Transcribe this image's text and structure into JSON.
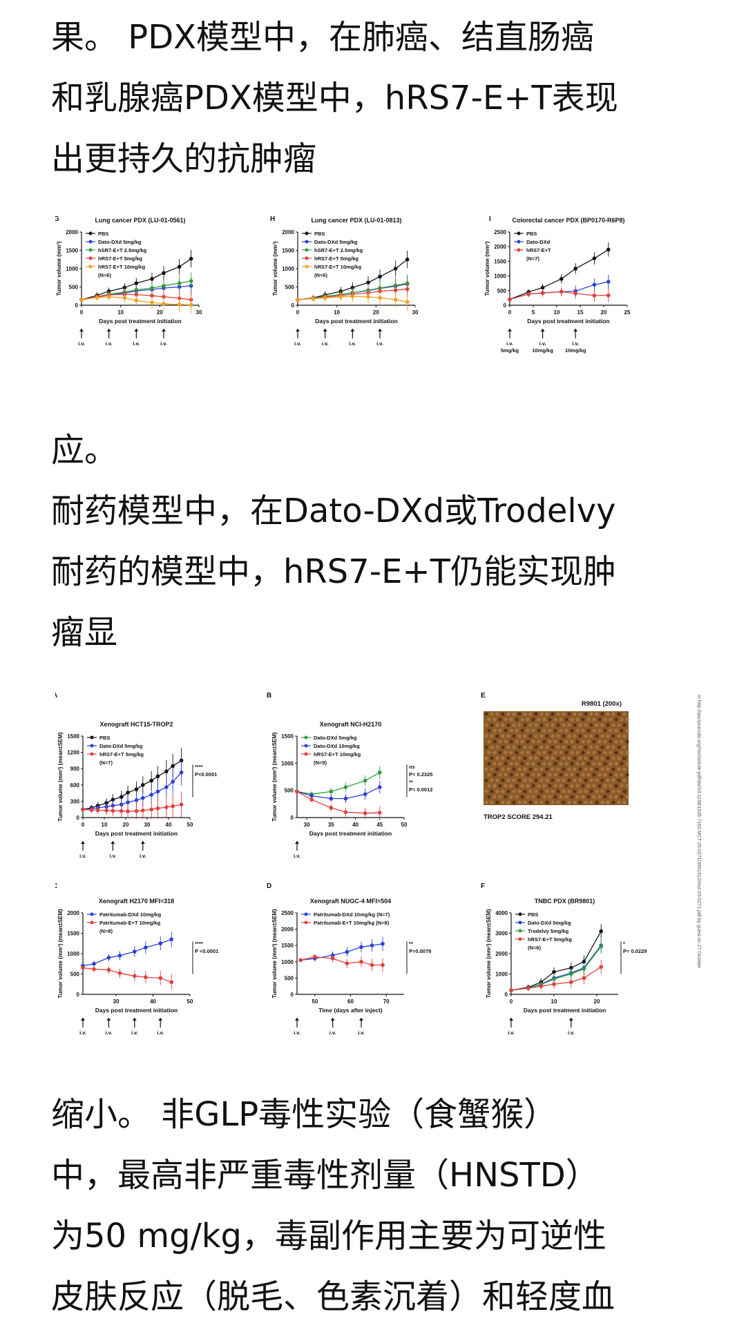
{
  "paragraphs": {
    "p1": [
      "果。 PDX模型中，在肺癌、结直肠癌",
      "和乳腺癌PDX模型中，hRS7-E+T表现",
      "出更持久的抗肿瘤"
    ],
    "p2": [
      "应。",
      " 耐药模型中，在Dato-DXd或Trodelvy",
      "耐药的模型中，hRS7-E+T仍能实现肿",
      "瘤显"
    ],
    "p3": [
      "缩小。 非GLP毒性实验（食蟹猴）",
      "中，最高非严重毒性剂量（HNSTD）",
      "为50 mg/kg，毒副作用主要为可逆性",
      "皮肤反应（脱毛、色素沉着）和轻度血"
    ]
  },
  "colors": {
    "black": "#111111",
    "blue": "#2b3fd6",
    "green": "#2e9e3a",
    "red": "#e0403c",
    "orange": "#f0a020",
    "tissue": "#8a5a2a"
  },
  "chart_data": [
    {
      "panel": "G",
      "type": "line",
      "title": "Lung cancer PDX (LU-01-0561)",
      "xlabel": "Days post treatment initiation",
      "ylabel": "Tumor volume (mm³)",
      "xlim": [
        0,
        30
      ],
      "ylim": [
        0,
        2000
      ],
      "xticks": [
        0,
        10,
        20,
        30
      ],
      "yticks": [
        0,
        500,
        1000,
        1500,
        2000
      ],
      "note": "(N=6)",
      "dosing": [
        "i.v.",
        "i.v.",
        "i.v.",
        "i.v."
      ],
      "dose_days": [
        0,
        7,
        14,
        21
      ],
      "series": [
        {
          "name": "PBS",
          "color": "#111111",
          "x": [
            0,
            4,
            7,
            11,
            14,
            18,
            21,
            25,
            28
          ],
          "y": [
            150,
            270,
            380,
            480,
            600,
            720,
            880,
            1050,
            1270
          ]
        },
        {
          "name": "Dato-DXd 5mg/kg",
          "color": "#2b3fd6",
          "x": [
            0,
            4,
            7,
            11,
            14,
            18,
            21,
            25,
            28
          ],
          "y": [
            150,
            220,
            280,
            330,
            390,
            430,
            470,
            500,
            530
          ]
        },
        {
          "name": "hSR7-E+T 2.5mg/kg",
          "color": "#2e9e3a",
          "x": [
            0,
            4,
            7,
            11,
            14,
            18,
            21,
            25,
            28
          ],
          "y": [
            150,
            230,
            300,
            360,
            420,
            470,
            530,
            600,
            660
          ]
        },
        {
          "name": "hRS7-E+T 5mg/kg",
          "color": "#e0403c",
          "x": [
            0,
            4,
            7,
            11,
            14,
            18,
            21,
            25,
            28
          ],
          "y": [
            150,
            230,
            280,
            300,
            290,
            260,
            230,
            190,
            150
          ]
        },
        {
          "name": "hRS7-E+T 10mg/kg",
          "color": "#f0a020",
          "x": [
            0,
            4,
            7,
            11,
            14,
            18,
            21,
            25,
            28
          ],
          "y": [
            150,
            210,
            230,
            200,
            130,
            70,
            40,
            20,
            10
          ]
        }
      ]
    },
    {
      "panel": "H",
      "type": "line",
      "title": "Lung cancer PDX (LU-01-0813)",
      "xlabel": "Days post treatment initiation",
      "ylabel": "Tumor volume (mm³)",
      "xlim": [
        0,
        30
      ],
      "ylim": [
        0,
        2000
      ],
      "xticks": [
        0,
        10,
        20,
        30
      ],
      "yticks": [
        0,
        500,
        1000,
        1500,
        2000
      ],
      "note": "(N=6)",
      "dosing": [
        "i.v.",
        "i.v.",
        "i.v.",
        "i.v."
      ],
      "dose_days": [
        0,
        7,
        14,
        21
      ],
      "series": [
        {
          "name": "PBS",
          "color": "#111111",
          "x": [
            0,
            4,
            7,
            11,
            14,
            18,
            21,
            25,
            28
          ],
          "y": [
            150,
            200,
            280,
            380,
            480,
            620,
            780,
            1000,
            1250
          ]
        },
        {
          "name": "Dato-DXd 5mg/kg",
          "color": "#2b3fd6",
          "x": [
            0,
            4,
            7,
            11,
            14,
            18,
            21,
            25,
            28
          ],
          "y": [
            150,
            190,
            240,
            290,
            340,
            400,
            460,
            520,
            580
          ]
        },
        {
          "name": "hSR7-E+T 2.5mg/kg",
          "color": "#2e9e3a",
          "x": [
            0,
            4,
            7,
            11,
            14,
            18,
            21,
            25,
            28
          ],
          "y": [
            150,
            190,
            240,
            290,
            340,
            410,
            470,
            540,
            600
          ]
        },
        {
          "name": "hRS7-E+T 5mg/kg",
          "color": "#e0403c",
          "x": [
            0,
            4,
            7,
            11,
            14,
            18,
            21,
            25,
            28
          ],
          "y": [
            150,
            185,
            220,
            260,
            300,
            340,
            380,
            410,
            440
          ]
        },
        {
          "name": "hRS7-E+T 10mg/kg",
          "color": "#f0a020",
          "x": [
            0,
            4,
            7,
            11,
            14,
            18,
            21,
            25,
            28
          ],
          "y": [
            150,
            180,
            200,
            230,
            240,
            230,
            200,
            150,
            90
          ]
        }
      ]
    },
    {
      "panel": "I",
      "type": "line",
      "title": "Colorectal cancer PDX (BP0170-R6P8)",
      "xlabel": "Days post treatment initiation",
      "ylabel": "Tumor volume (mm³)",
      "xlim": [
        0,
        25
      ],
      "ylim": [
        0,
        2500
      ],
      "xticks": [
        0,
        5,
        10,
        15,
        20,
        25
      ],
      "yticks": [
        0,
        500,
        1000,
        1500,
        2000,
        2500
      ],
      "note": "(N=7)",
      "dosing": [
        "i.v.\n5mg/kg",
        "i.v.\n10mg/kg",
        "i.v.\n10mg/kg"
      ],
      "dose_days": [
        0,
        7,
        14
      ],
      "series": [
        {
          "name": "PBS",
          "color": "#111111",
          "x": [
            0,
            4,
            7,
            11,
            14,
            18,
            21
          ],
          "y": [
            200,
            450,
            600,
            900,
            1250,
            1600,
            1900
          ]
        },
        {
          "name": "Dato-DXd",
          "color": "#2b3fd6",
          "x": [
            0,
            4,
            7,
            11,
            14,
            18,
            21
          ],
          "y": [
            200,
            380,
            420,
            460,
            480,
            700,
            800
          ]
        },
        {
          "name": "hRS7-E+T",
          "color": "#e0403c",
          "x": [
            0,
            4,
            7,
            11,
            14,
            18,
            21
          ],
          "y": [
            200,
            380,
            420,
            460,
            400,
            330,
            340
          ]
        }
      ]
    },
    {
      "panel": "A",
      "type": "line",
      "title": "Xenograft HCT15-TROP2",
      "xlabel": "Days post treatment initiation",
      "ylabel": "Tumor volume (mm³) (mean±SEM)",
      "xlim": [
        0,
        50
      ],
      "ylim": [
        0,
        1500
      ],
      "xticks": [
        0,
        10,
        20,
        30,
        40,
        50
      ],
      "yticks": [
        0,
        300,
        600,
        900,
        1200,
        1500
      ],
      "note": "(N=7)",
      "stats": [
        "****",
        "P<0.0001"
      ],
      "dosing": [
        "i.v.",
        "i.v.",
        "i.v."
      ],
      "dose_days": [
        0,
        14,
        28
      ],
      "series": [
        {
          "name": "PBS",
          "color": "#111111",
          "x": [
            0,
            4,
            7,
            11,
            14,
            18,
            21,
            25,
            28,
            32,
            35,
            39,
            42,
            46
          ],
          "y": [
            150,
            180,
            220,
            270,
            330,
            380,
            460,
            520,
            600,
            680,
            760,
            850,
            950,
            1050
          ]
        },
        {
          "name": "Dato-DXd  5mg/kg",
          "color": "#2b3fd6",
          "x": [
            0,
            4,
            7,
            11,
            14,
            18,
            21,
            25,
            28,
            32,
            35,
            39,
            42,
            46
          ],
          "y": [
            150,
            160,
            180,
            200,
            220,
            240,
            280,
            320,
            360,
            420,
            480,
            560,
            660,
            830
          ]
        },
        {
          "name": "hRS7-E+T  5mg/kg",
          "color": "#e0403c",
          "x": [
            0,
            4,
            7,
            11,
            14,
            18,
            21,
            25,
            28,
            32,
            35,
            39,
            42,
            46
          ],
          "y": [
            150,
            140,
            135,
            130,
            125,
            120,
            115,
            120,
            130,
            150,
            170,
            190,
            210,
            240
          ]
        }
      ]
    },
    {
      "panel": "B",
      "type": "line",
      "title": "Xenograft NCI-H2170",
      "xlabel": "Days post treatment initiation",
      "ylabel": "Tumor volume (mm³) (mean±SEM)",
      "xlim": [
        28,
        50
      ],
      "ylim": [
        0,
        1500
      ],
      "xticks": [
        30,
        35,
        40,
        45,
        50
      ],
      "yticks": [
        0,
        500,
        1000,
        1500
      ],
      "note": "(N=9)",
      "stats": [
        "ns",
        "P= 0.2325",
        "**",
        "P= 0.0012"
      ],
      "dosing": [
        "i.v."
      ],
      "dose_days": [
        28
      ],
      "series": [
        {
          "name": "Dato-DXd 5mg/kg",
          "color": "#2e9e3a",
          "x": [
            28,
            31,
            35,
            38,
            42,
            45
          ],
          "y": [
            480,
            430,
            480,
            560,
            680,
            830
          ]
        },
        {
          "name": "Dato-DXd 10mg/kg",
          "color": "#2b3fd6",
          "x": [
            28,
            31,
            35,
            38,
            42,
            45
          ],
          "y": [
            480,
            400,
            350,
            350,
            430,
            560
          ]
        },
        {
          "name": "hRS7-E+T 10mg/kg",
          "color": "#e0403c",
          "x": [
            28,
            31,
            35,
            38,
            42,
            45
          ],
          "y": [
            480,
            330,
            180,
            100,
            80,
            90
          ]
        }
      ]
    },
    {
      "panel": "C",
      "type": "line",
      "title": "Xenograft H2170 MFI=318",
      "xlabel": "Days post treatment initiation",
      "ylabel": "Tumor volume (mm³) (mean±SEM)",
      "xlim": [
        21,
        50
      ],
      "ylim": [
        0,
        2000
      ],
      "xticks": [
        30,
        40,
        50
      ],
      "yticks": [
        0,
        500,
        1000,
        1500,
        2000
      ],
      "note": "(N=8)",
      "stats": [
        "****",
        "P <0.0001"
      ],
      "dosing": [
        "i.v.",
        "i.v.",
        "i.v.",
        "i.v."
      ],
      "dose_days": [
        21,
        28,
        35,
        42
      ],
      "series": [
        {
          "name": "Patritumab-DXd 10mg/kg",
          "color": "#2b3fd6",
          "x": [
            21,
            24,
            28,
            31,
            35,
            38,
            42,
            45
          ],
          "y": [
            700,
            750,
            900,
            950,
            1050,
            1150,
            1250,
            1350
          ]
        },
        {
          "name": "Patritumab-E+T 10mg/kg",
          "color": "#e0403c",
          "x": [
            21,
            24,
            28,
            31,
            35,
            38,
            42,
            45
          ],
          "y": [
            650,
            620,
            600,
            520,
            450,
            420,
            400,
            300
          ]
        }
      ]
    },
    {
      "panel": "D",
      "type": "line",
      "title": "Xenograft NUGC-4 MFI=504",
      "xlabel": "Time (days after inject)",
      "ylabel": "Tumor volume (mm³) (mean±SEM)",
      "xlim": [
        45,
        75
      ],
      "ylim": [
        0,
        2500
      ],
      "xticks": [
        50,
        60,
        70
      ],
      "yticks": [
        0,
        500,
        1000,
        1500,
        2000,
        2500
      ],
      "stats": [
        "**",
        "P=0.0078"
      ],
      "dosing": [
        "i.v.",
        "i.v.",
        "i.v."
      ],
      "dose_days": [
        45,
        55,
        63
      ],
      "series": [
        {
          "name": "Patritumab-DXd 10mg/kg (N=7)",
          "color": "#2b3fd6",
          "x": [
            46,
            50,
            55,
            59,
            63,
            66,
            69
          ],
          "y": [
            1050,
            1100,
            1200,
            1300,
            1450,
            1500,
            1550
          ]
        },
        {
          "name": "Patritumab-E+T 10mg/kg (N=8)",
          "color": "#e0403c",
          "x": [
            46,
            50,
            55,
            59,
            63,
            66,
            69
          ],
          "y": [
            1050,
            1150,
            1100,
            950,
            1000,
            900,
            900
          ]
        }
      ]
    },
    {
      "panel": "F",
      "type": "line",
      "title": "TNBC PDX (BR9801)",
      "xlabel": "Days post treatment initiation",
      "ylabel": "Tumor volume (mm³) (mean±SEM)",
      "xlim": [
        0,
        25
      ],
      "ylim": [
        0,
        4000
      ],
      "xticks": [
        0,
        10,
        20
      ],
      "yticks": [
        0,
        1000,
        2000,
        3000,
        4000
      ],
      "note": "(N=6)",
      "stats": [
        "*",
        "P= 0.0229"
      ],
      "dosing": [
        "i.v.",
        "i.v."
      ],
      "dose_days": [
        0,
        14
      ],
      "series": [
        {
          "name": "PBS",
          "color": "#111111",
          "x": [
            0,
            4,
            7,
            10,
            14,
            17,
            21
          ],
          "y": [
            200,
            350,
            600,
            1100,
            1300,
            1600,
            3100
          ]
        },
        {
          "name": "Dato-DXd  5mg/kg",
          "color": "#2b3fd6",
          "x": [
            0,
            4,
            7,
            10,
            14,
            17,
            21
          ],
          "y": [
            200,
            320,
            500,
            800,
            1050,
            1300,
            2400
          ]
        },
        {
          "name": "Trodelvy  5mg/kg",
          "color": "#2e9e3a",
          "x": [
            0,
            4,
            7,
            10,
            14,
            17,
            21
          ],
          "y": [
            200,
            310,
            480,
            750,
            1000,
            1250,
            2350
          ]
        },
        {
          "name": "hRS7-E+T  5mg/kg",
          "color": "#e0403c",
          "x": [
            0,
            4,
            7,
            10,
            14,
            17,
            21
          ],
          "y": [
            200,
            300,
            400,
            500,
            600,
            800,
            1350
          ]
        }
      ]
    }
  ],
  "tissue_panel": {
    "panel": "E",
    "label": "R9801 (200x)",
    "score": "TROP2 SCORE  294.21"
  },
  "watermark": "m http://aacrjournals.org/mct/article-pdf/doi/10.1158/1535-7163.MCT-25-0271/3661912/mct-25-0271.pdf by guest on 27 October"
}
